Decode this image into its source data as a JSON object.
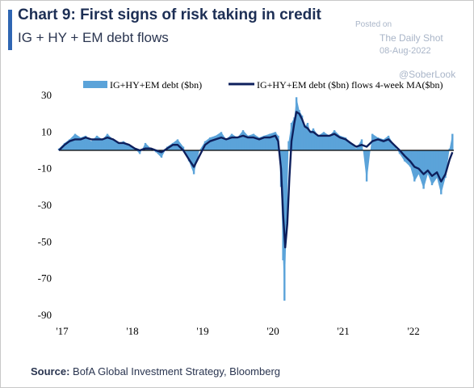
{
  "header": {
    "title": "Chart 9: First signs of risk taking in credit",
    "subtitle": "IG + HY + EM debt flows"
  },
  "watermark": {
    "posted_on": "Posted on",
    "site": "The Daily Shot",
    "date": "08-Aug-2022",
    "handle": "@SoberLook"
  },
  "source": {
    "label": "Source:",
    "text": "BofA Global Investment Strategy, Bloomberg"
  },
  "colors": {
    "bars": "#5ba3d9",
    "line": "#0d1f5c",
    "accent": "#2f66b3"
  },
  "chart_data": {
    "type": "bar",
    "legend_position": "top",
    "grid": false,
    "ylim": [
      -90,
      30
    ],
    "yticks": [
      "30",
      "10",
      "-10",
      "-30",
      "-50",
      "-70",
      "-90"
    ],
    "xticks": [
      "'17",
      "'18",
      "'19",
      "'20",
      "'21",
      "'22"
    ],
    "xlim": [
      2017.0,
      2022.62
    ],
    "series": [
      {
        "name": "IG+HY+EM debt ($bn)",
        "type": "bar",
        "points": [
          [
            2017.0,
            1
          ],
          [
            2017.08,
            4
          ],
          [
            2017.15,
            6
          ],
          [
            2017.23,
            9
          ],
          [
            2017.31,
            7
          ],
          [
            2017.38,
            8
          ],
          [
            2017.46,
            5
          ],
          [
            2017.54,
            8
          ],
          [
            2017.62,
            6
          ],
          [
            2017.69,
            9
          ],
          [
            2017.77,
            6
          ],
          [
            2017.85,
            4
          ],
          [
            2017.92,
            5
          ],
          [
            2018.0,
            3
          ],
          [
            2018.08,
            1
          ],
          [
            2018.15,
            -2
          ],
          [
            2018.23,
            4
          ],
          [
            2018.31,
            1
          ],
          [
            2018.38,
            -1
          ],
          [
            2018.46,
            -4
          ],
          [
            2018.54,
            2
          ],
          [
            2018.62,
            4
          ],
          [
            2018.69,
            6
          ],
          [
            2018.77,
            2
          ],
          [
            2018.85,
            -6
          ],
          [
            2018.92,
            -13
          ],
          [
            2019.0,
            0
          ],
          [
            2019.08,
            5
          ],
          [
            2019.15,
            7
          ],
          [
            2019.23,
            8
          ],
          [
            2019.31,
            10
          ],
          [
            2019.38,
            6
          ],
          [
            2019.46,
            9
          ],
          [
            2019.54,
            7
          ],
          [
            2019.62,
            11
          ],
          [
            2019.69,
            8
          ],
          [
            2019.77,
            9
          ],
          [
            2019.85,
            7
          ],
          [
            2019.92,
            8
          ],
          [
            2020.0,
            9
          ],
          [
            2020.08,
            10
          ],
          [
            2020.12,
            8
          ],
          [
            2020.16,
            -20
          ],
          [
            2020.19,
            -60
          ],
          [
            2020.21,
            -82
          ],
          [
            2020.24,
            -40
          ],
          [
            2020.27,
            5
          ],
          [
            2020.31,
            15
          ],
          [
            2020.35,
            18
          ],
          [
            2020.38,
            29
          ],
          [
            2020.42,
            22
          ],
          [
            2020.46,
            19
          ],
          [
            2020.5,
            13
          ],
          [
            2020.54,
            15
          ],
          [
            2020.58,
            10
          ],
          [
            2020.62,
            12
          ],
          [
            2020.69,
            8
          ],
          [
            2020.77,
            10
          ],
          [
            2020.85,
            8
          ],
          [
            2020.92,
            11
          ],
          [
            2021.0,
            8
          ],
          [
            2021.08,
            7
          ],
          [
            2021.15,
            4
          ],
          [
            2021.23,
            1
          ],
          [
            2021.31,
            6
          ],
          [
            2021.38,
            -17
          ],
          [
            2021.46,
            9
          ],
          [
            2021.54,
            7
          ],
          [
            2021.62,
            6
          ],
          [
            2021.69,
            8
          ],
          [
            2021.77,
            3
          ],
          [
            2021.85,
            -2
          ],
          [
            2021.92,
            -6
          ],
          [
            2022.0,
            -9
          ],
          [
            2022.06,
            -17
          ],
          [
            2022.12,
            -13
          ],
          [
            2022.19,
            -21
          ],
          [
            2022.25,
            -13
          ],
          [
            2022.31,
            -19
          ],
          [
            2022.38,
            -15
          ],
          [
            2022.44,
            -24
          ],
          [
            2022.5,
            -15
          ],
          [
            2022.56,
            1
          ],
          [
            2022.6,
            9
          ]
        ]
      },
      {
        "name": "IG+HY+EM debt ($bn) flows 4-week MA($bn)",
        "type": "line",
        "points": [
          [
            2017.0,
            0
          ],
          [
            2017.08,
            3
          ],
          [
            2017.15,
            5
          ],
          [
            2017.23,
            6
          ],
          [
            2017.31,
            6
          ],
          [
            2017.38,
            7
          ],
          [
            2017.46,
            6
          ],
          [
            2017.54,
            6
          ],
          [
            2017.62,
            6
          ],
          [
            2017.69,
            7
          ],
          [
            2017.77,
            6
          ],
          [
            2017.85,
            4
          ],
          [
            2017.92,
            4
          ],
          [
            2018.0,
            3
          ],
          [
            2018.08,
            1
          ],
          [
            2018.15,
            0
          ],
          [
            2018.23,
            1
          ],
          [
            2018.31,
            1
          ],
          [
            2018.38,
            0
          ],
          [
            2018.46,
            -1
          ],
          [
            2018.54,
            1
          ],
          [
            2018.62,
            3
          ],
          [
            2018.69,
            3
          ],
          [
            2018.77,
            0
          ],
          [
            2018.85,
            -5
          ],
          [
            2018.92,
            -9
          ],
          [
            2019.0,
            -3
          ],
          [
            2019.08,
            3
          ],
          [
            2019.15,
            5
          ],
          [
            2019.23,
            6
          ],
          [
            2019.31,
            7
          ],
          [
            2019.38,
            6
          ],
          [
            2019.46,
            7
          ],
          [
            2019.54,
            7
          ],
          [
            2019.62,
            8
          ],
          [
            2019.69,
            7
          ],
          [
            2019.77,
            7
          ],
          [
            2019.85,
            6
          ],
          [
            2019.92,
            7
          ],
          [
            2020.0,
            7
          ],
          [
            2020.08,
            8
          ],
          [
            2020.12,
            5
          ],
          [
            2020.16,
            -10
          ],
          [
            2020.19,
            -35
          ],
          [
            2020.22,
            -53
          ],
          [
            2020.25,
            -40
          ],
          [
            2020.28,
            -15
          ],
          [
            2020.31,
            5
          ],
          [
            2020.35,
            15
          ],
          [
            2020.38,
            21
          ],
          [
            2020.42,
            20
          ],
          [
            2020.46,
            17
          ],
          [
            2020.5,
            13
          ],
          [
            2020.54,
            12
          ],
          [
            2020.58,
            10
          ],
          [
            2020.62,
            10
          ],
          [
            2020.69,
            8
          ],
          [
            2020.77,
            8
          ],
          [
            2020.85,
            8
          ],
          [
            2020.92,
            9
          ],
          [
            2021.0,
            7
          ],
          [
            2021.08,
            6
          ],
          [
            2021.15,
            4
          ],
          [
            2021.23,
            2
          ],
          [
            2021.31,
            3
          ],
          [
            2021.38,
            2
          ],
          [
            2021.46,
            5
          ],
          [
            2021.54,
            6
          ],
          [
            2021.62,
            5
          ],
          [
            2021.69,
            6
          ],
          [
            2021.77,
            3
          ],
          [
            2021.85,
            0
          ],
          [
            2021.92,
            -3
          ],
          [
            2022.0,
            -6
          ],
          [
            2022.06,
            -9
          ],
          [
            2022.12,
            -10
          ],
          [
            2022.19,
            -13
          ],
          [
            2022.25,
            -11
          ],
          [
            2022.31,
            -14
          ],
          [
            2022.38,
            -12
          ],
          [
            2022.44,
            -17
          ],
          [
            2022.5,
            -13
          ],
          [
            2022.56,
            -5
          ],
          [
            2022.6,
            -1
          ]
        ]
      }
    ]
  }
}
